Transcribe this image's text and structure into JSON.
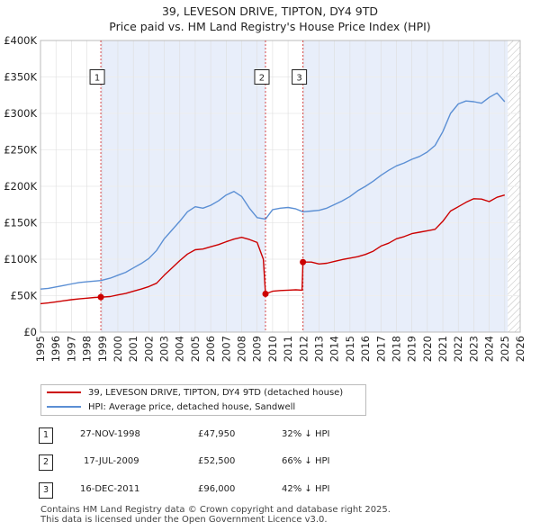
{
  "title_line1": "39, LEVESON DRIVE, TIPTON, DY4 9TD",
  "title_line2": "Price paid vs. HM Land Registry's House Price Index (HPI)",
  "chart_data": {
    "type": "line",
    "title": "39, LEVESON DRIVE, TIPTON, DY4 9TD — Price paid vs. HM Land Registry's House Price Index (HPI)",
    "xlim": [
      1995,
      2026
    ],
    "ylim": [
      0,
      400000
    ],
    "x_ticks": [
      1995,
      1996,
      1997,
      1998,
      1999,
      2000,
      2001,
      2002,
      2003,
      2004,
      2005,
      2006,
      2007,
      2008,
      2009,
      2010,
      2011,
      2012,
      2013,
      2014,
      2015,
      2016,
      2017,
      2018,
      2019,
      2020,
      2021,
      2022,
      2023,
      2024,
      2025,
      2026
    ],
    "y_ticks": [
      {
        "value": 0,
        "label": "£0"
      },
      {
        "value": 50000,
        "label": "£50K"
      },
      {
        "value": 100000,
        "label": "£100K"
      },
      {
        "value": 150000,
        "label": "£150K"
      },
      {
        "value": 200000,
        "label": "£200K"
      },
      {
        "value": 250000,
        "label": "£250K"
      },
      {
        "value": 300000,
        "label": "£300K"
      },
      {
        "value": 350000,
        "label": "£350K"
      },
      {
        "value": 400000,
        "label": "£400K"
      }
    ],
    "shaded_regions": [
      [
        1998.9,
        2009.54
      ],
      [
        2011.96,
        2025.2
      ]
    ],
    "future_hatch_start": 2025.2,
    "series": [
      {
        "name": "39, LEVESON DRIVE, TIPTON, DY4 9TD (detached house)",
        "color": "#cc0000",
        "x": [
          1995.0,
          1995.5,
          1996.0,
          1996.5,
          1997.0,
          1997.5,
          1998.0,
          1998.5,
          1998.9,
          1999.5,
          2000.0,
          2000.5,
          2001.0,
          2001.5,
          2002.0,
          2002.5,
          2003.0,
          2003.5,
          2004.0,
          2004.5,
          2005.0,
          2005.5,
          2006.0,
          2006.5,
          2007.0,
          2007.5,
          2008.0,
          2008.5,
          2009.0,
          2009.4,
          2009.54,
          2010.0,
          2010.5,
          2011.0,
          2011.5,
          2011.9,
          2011.96,
          2012.5,
          2013.0,
          2013.5,
          2014.0,
          2014.5,
          2015.0,
          2015.5,
          2016.0,
          2016.5,
          2017.0,
          2017.5,
          2018.0,
          2018.5,
          2019.0,
          2019.5,
          2020.0,
          2020.5,
          2021.0,
          2021.5,
          2022.0,
          2022.5,
          2023.0,
          2023.5,
          2024.0,
          2024.5,
          2025.0
        ],
        "values": [
          39000,
          40000,
          41500,
          43000,
          44500,
          45500,
          46500,
          47500,
          47950,
          48800,
          51000,
          53000,
          56000,
          59000,
          62500,
          67000,
          78000,
          88000,
          98000,
          107000,
          113000,
          114000,
          117000,
          120000,
          124000,
          127500,
          130000,
          127000,
          123000,
          100000,
          52500,
          56000,
          57000,
          57500,
          58000,
          57500,
          96000,
          96000,
          93500,
          94500,
          97000,
          99500,
          101500,
          103500,
          106500,
          111000,
          118000,
          122000,
          128000,
          131000,
          135000,
          137000,
          139000,
          141000,
          152000,
          166000,
          172000,
          178000,
          183000,
          182500,
          179000,
          185000,
          188000
        ]
      },
      {
        "name": "HPI: Average price, detached house, Sandwell",
        "color": "#5b8fd4",
        "x": [
          1995.0,
          1995.5,
          1996.0,
          1996.5,
          1997.0,
          1997.5,
          1998.0,
          1998.5,
          1998.9,
          1999.5,
          2000.0,
          2000.5,
          2001.0,
          2001.5,
          2002.0,
          2002.5,
          2003.0,
          2003.5,
          2004.0,
          2004.5,
          2005.0,
          2005.5,
          2006.0,
          2006.5,
          2007.0,
          2007.5,
          2008.0,
          2008.5,
          2009.0,
          2009.54,
          2010.0,
          2010.5,
          2011.0,
          2011.5,
          2011.96,
          2012.5,
          2013.0,
          2013.5,
          2014.0,
          2014.5,
          2015.0,
          2015.5,
          2016.0,
          2016.5,
          2017.0,
          2017.5,
          2018.0,
          2018.5,
          2019.0,
          2019.5,
          2020.0,
          2020.5,
          2021.0,
          2021.5,
          2022.0,
          2022.5,
          2023.0,
          2023.5,
          2024.0,
          2024.5,
          2025.0
        ],
        "values": [
          59000,
          60000,
          62000,
          64000,
          66000,
          68000,
          69000,
          70000,
          70700,
          74000,
          78000,
          82000,
          88000,
          94000,
          101000,
          112000,
          128000,
          140000,
          152000,
          165000,
          172000,
          170000,
          174000,
          180000,
          188000,
          193000,
          186000,
          170000,
          157000,
          155000,
          168000,
          170000,
          171000,
          169000,
          165000,
          166000,
          167000,
          170000,
          175000,
          180000,
          186000,
          194000,
          200000,
          207000,
          215000,
          222000,
          228000,
          232000,
          237000,
          241000,
          247000,
          256000,
          275000,
          300000,
          313000,
          317000,
          316000,
          314000,
          322000,
          328000,
          316000
        ]
      }
    ],
    "sales": [
      {
        "num": "1",
        "x": 1998.9,
        "value": 47950
      },
      {
        "num": "2",
        "x": 2009.54,
        "value": 52500
      },
      {
        "num": "3",
        "x": 2011.96,
        "value": 96000
      }
    ],
    "marker_label_value": 350000
  },
  "legend": {
    "property": "39, LEVESON DRIVE, TIPTON, DY4 9TD (detached house)",
    "hpi": "HPI: Average price, detached house, Sandwell"
  },
  "transactions": [
    {
      "num": "1",
      "date": "27-NOV-1998",
      "price": "£47,950",
      "hpi": "32% ↓ HPI"
    },
    {
      "num": "2",
      "date": "17-JUL-2009",
      "price": "£52,500",
      "hpi": "66% ↓ HPI"
    },
    {
      "num": "3",
      "date": "16-DEC-2011",
      "price": "£96,000",
      "hpi": "42% ↓ HPI"
    }
  ],
  "colors": {
    "property": "#cc0000",
    "hpi": "#5b8fd4",
    "shade": "#e8eefa"
  },
  "footer": {
    "line1": "Contains HM Land Registry data © Crown copyright and database right 2025.",
    "line2": "This data is licensed under the Open Government Licence v3.0."
  }
}
